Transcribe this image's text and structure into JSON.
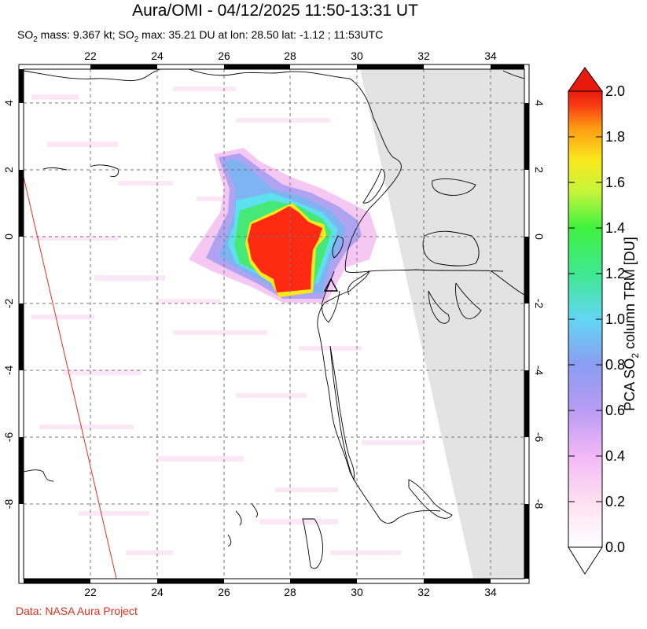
{
  "title": "Aura/OMI - 04/12/2025 11:50-13:31 UT",
  "subtitle": {
    "part1": "SO",
    "sub1": "2",
    "part2": " mass: 9.367 kt; SO",
    "sub2": "2",
    "part3": " max: 35.21 DU at lon: 28.50 lat: -1.12 ; 11:53UTC"
  },
  "credit": "Data: NASA Aura Project",
  "map": {
    "lon_ticks": [
      "22",
      "24",
      "26",
      "28",
      "30",
      "32",
      "34"
    ],
    "lat_ticks": [
      "4",
      "2",
      "0",
      "-2",
      "-4",
      "-6",
      "-8"
    ],
    "lon_range": [
      20,
      35
    ],
    "lat_range": [
      -10,
      5
    ],
    "volcano_marker": {
      "lon": 29.2,
      "lat": -1.5,
      "icon": "triangle-icon"
    },
    "max_location": {
      "lon": 28.5,
      "lat": -1.12
    }
  },
  "colorbar": {
    "ticks": [
      "2.0",
      "1.8",
      "1.6",
      "1.4",
      "1.2",
      "1.0",
      "0.8",
      "0.6",
      "0.4",
      "0.2",
      "0.0"
    ],
    "title_main": "PCA SO",
    "title_sub": "2",
    "title_end": " column TRM [DU]",
    "colors": [
      "#ffffff",
      "#fde0f0",
      "#f3b8f7",
      "#b89cf3",
      "#8b9df2",
      "#63d6f4",
      "#3fe890",
      "#3ff23f",
      "#c6f53a",
      "#f8e81c",
      "#ff9a14",
      "#f83a12",
      "#e81a0e"
    ]
  }
}
